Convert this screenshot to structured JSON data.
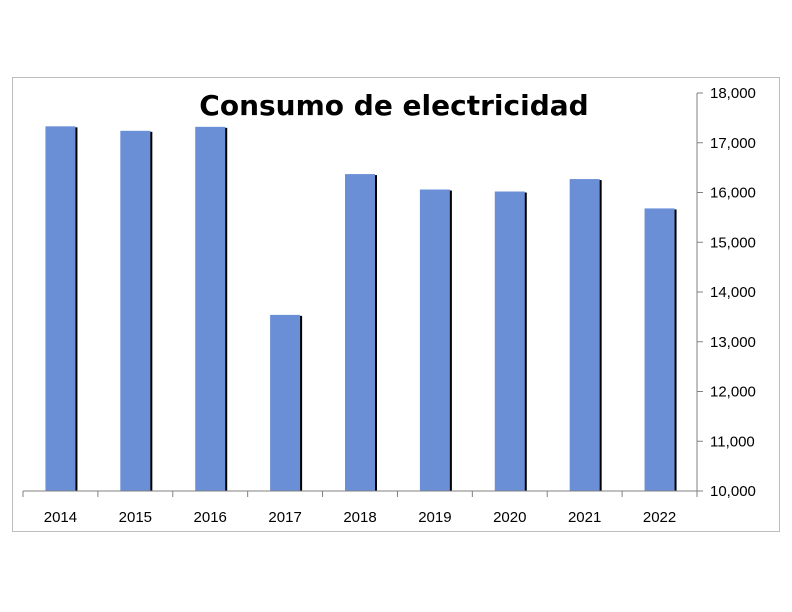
{
  "chart_data": {
    "type": "bar",
    "title": "Consumo de electricidad",
    "xlabel": "",
    "ylabel": "",
    "categories": [
      "2014",
      "2015",
      "2016",
      "2017",
      "2018",
      "2019",
      "2020",
      "2021",
      "2022"
    ],
    "values": [
      17330,
      17240,
      17320,
      13540,
      16370,
      16060,
      16020,
      16270,
      15680
    ],
    "ylim": [
      10000,
      18000
    ],
    "yticks": [
      "10,000",
      "11,000",
      "12,000",
      "13,000",
      "14,000",
      "15,000",
      "16,000",
      "17,000",
      "18,000"
    ],
    "y_axis_side": "right",
    "grid": false,
    "legend": "none",
    "colors": {
      "bar": "#6a8fd6",
      "bar_shadow": "#000000",
      "axis": "#808080"
    }
  }
}
